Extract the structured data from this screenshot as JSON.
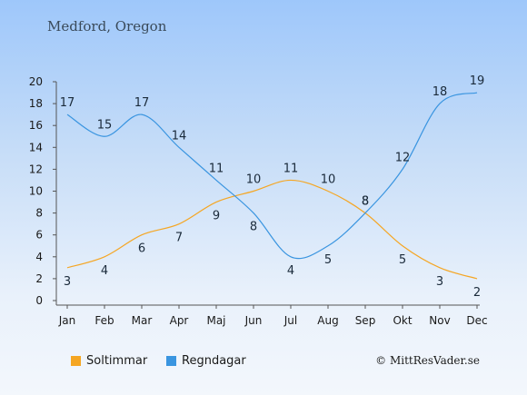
{
  "title": "Medford, Oregon",
  "copyright": "© MittResVader.se",
  "chart_data": {
    "type": "line",
    "categories": [
      "Jan",
      "Feb",
      "Mar",
      "Apr",
      "Maj",
      "Jun",
      "Jul",
      "Aug",
      "Sep",
      "Okt",
      "Nov",
      "Dec"
    ],
    "ylim": [
      0,
      20
    ],
    "yticks": [
      0,
      2,
      4,
      6,
      8,
      10,
      12,
      14,
      16,
      18,
      20
    ],
    "grid": false,
    "legend_position": "bottom-left",
    "series": [
      {
        "name": "Soltimmar",
        "color": "#f5a623",
        "values": [
          3,
          4,
          6,
          7,
          9,
          10,
          11,
          10,
          8,
          5,
          3,
          2
        ]
      },
      {
        "name": "Regndagar",
        "color": "#3a95e0",
        "values": [
          17,
          15,
          17,
          14,
          11,
          8,
          4,
          5,
          8,
          12,
          18,
          19
        ]
      }
    ]
  }
}
